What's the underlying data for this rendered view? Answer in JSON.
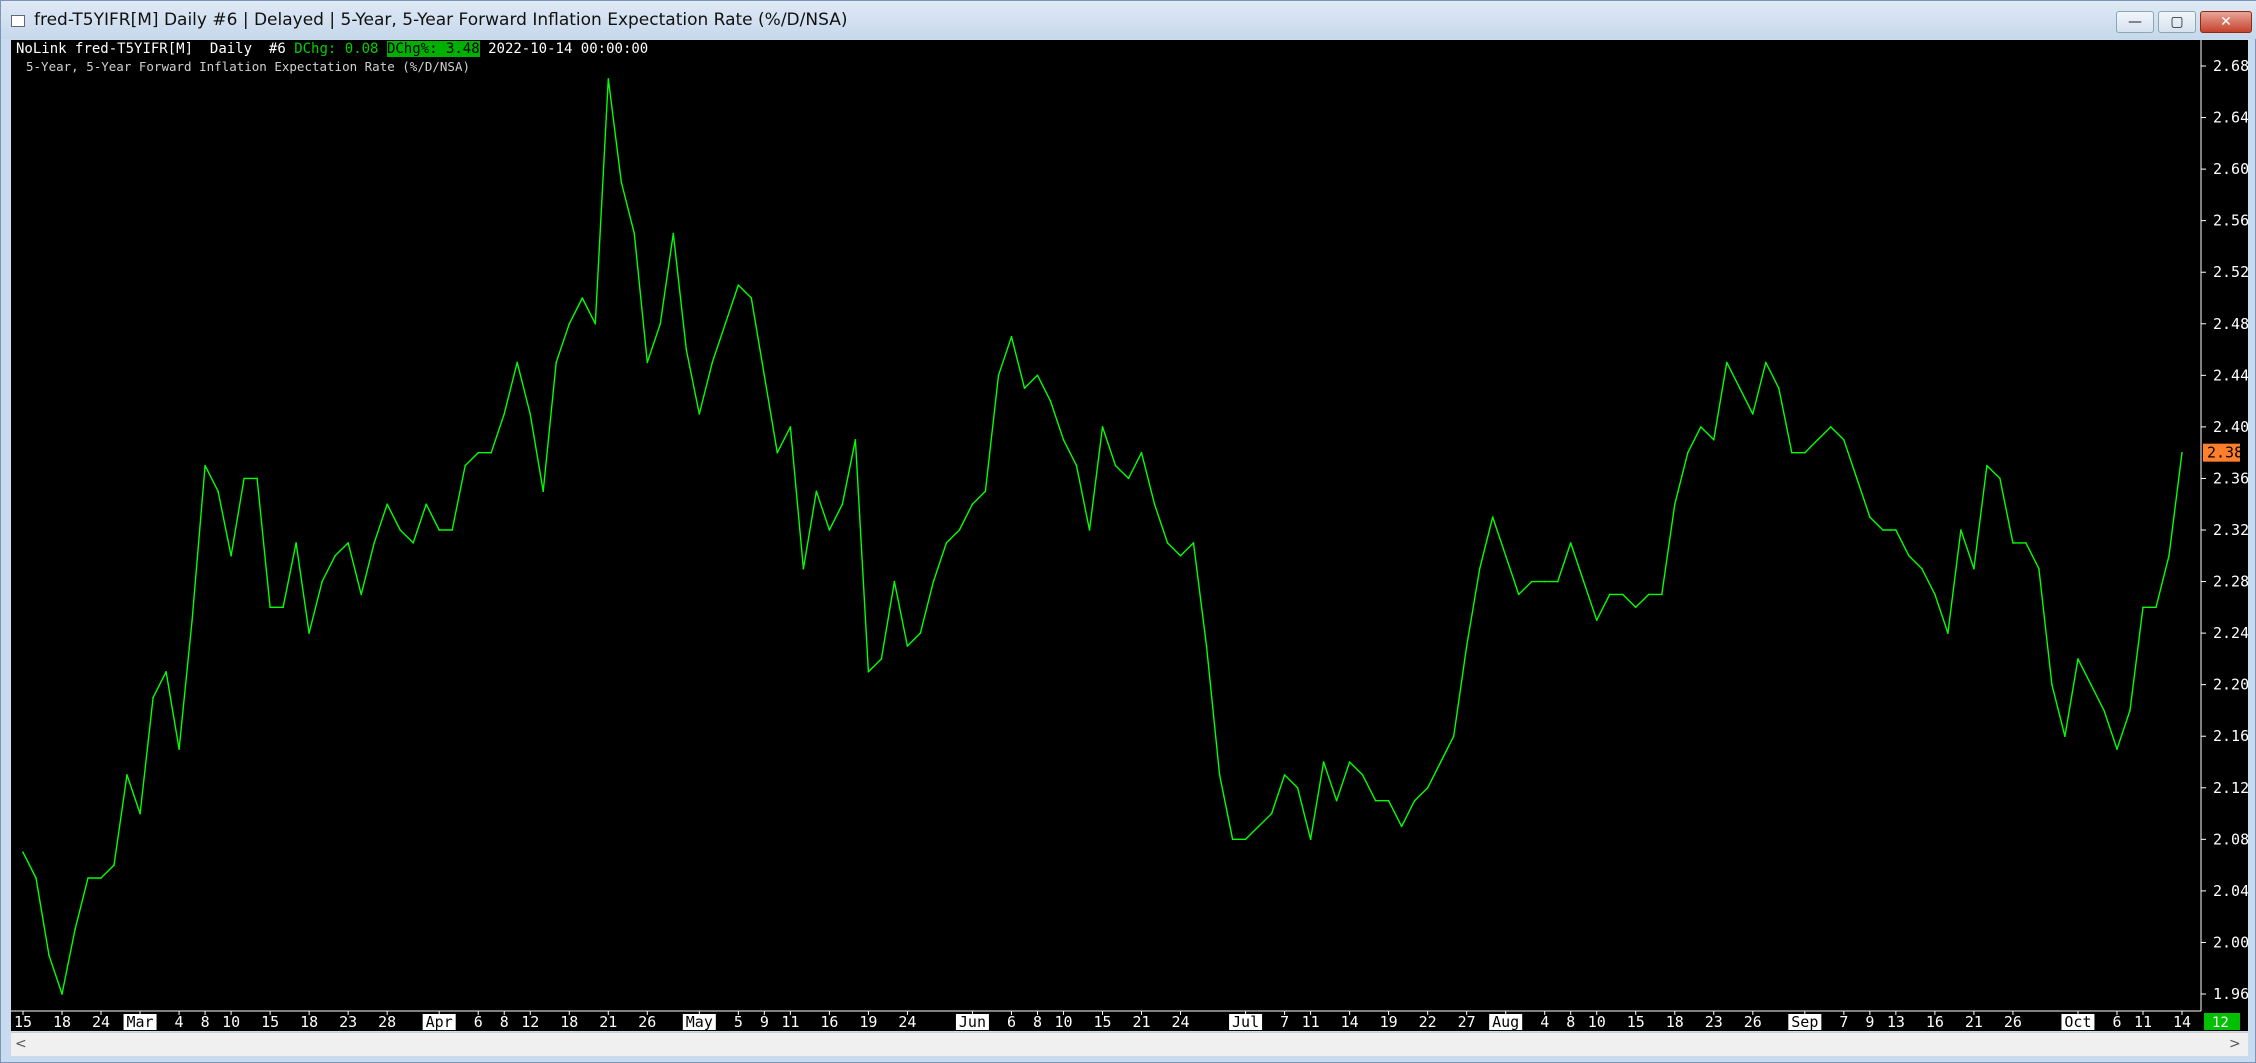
{
  "window": {
    "title": "fred-T5YIFR[M]  Daily  #6 | Delayed | 5-Year, 5-Year Forward Inflation Expectation Rate (%/D/NSA)",
    "minimize_glyph": "—",
    "maximize_glyph": "▢",
    "close_glyph": "✕"
  },
  "header": {
    "link": "NoLink",
    "symbol": "fred-T5YIFR[M]",
    "period": "Daily",
    "id": "#6",
    "dchg": "DChg: 0.08",
    "dchg_pct": "DChg%: 3.48",
    "datetime": "2022-10-14 00:00:00",
    "series_name": "5-Year, 5-Year Forward Inflation Expectation Rate (%/D/NSA)"
  },
  "colors": {
    "background": "#000000",
    "line": "#00ff00",
    "axis_text": "#ffffff",
    "last_price_tag": "#ff7f2a",
    "corner_tag": "#00c000"
  },
  "scrollbar": {
    "left_arrow": "<",
    "right_arrow": ">"
  },
  "chart_data": {
    "type": "line",
    "ylim": [
      1.94,
      2.7
    ],
    "yticks": [
      "2.68",
      "2.64",
      "2.60",
      "2.56",
      "2.52",
      "2.48",
      "2.44",
      "2.40",
      "2.36",
      "2.32",
      "2.28",
      "2.24",
      "2.20",
      "2.16",
      "2.12",
      "2.08",
      "2.04",
      "2.00",
      "1.96"
    ],
    "last_value_label": "2.38",
    "corner_label": "12",
    "xticks": [
      {
        "label": "15",
        "i": 0,
        "month": false
      },
      {
        "label": "18",
        "i": 3,
        "month": false
      },
      {
        "label": "24",
        "i": 6,
        "month": false
      },
      {
        "label": "Mar",
        "i": 9,
        "month": true
      },
      {
        "label": "4",
        "i": 12,
        "month": false
      },
      {
        "label": "8",
        "i": 14,
        "month": false
      },
      {
        "label": "10",
        "i": 16,
        "month": false
      },
      {
        "label": "15",
        "i": 19,
        "month": false
      },
      {
        "label": "18",
        "i": 22,
        "month": false
      },
      {
        "label": "23",
        "i": 25,
        "month": false
      },
      {
        "label": "28",
        "i": 28,
        "month": false
      },
      {
        "label": "Apr",
        "i": 32,
        "month": true
      },
      {
        "label": "6",
        "i": 35,
        "month": false
      },
      {
        "label": "8",
        "i": 37,
        "month": false
      },
      {
        "label": "12",
        "i": 39,
        "month": false
      },
      {
        "label": "18",
        "i": 42,
        "month": false
      },
      {
        "label": "21",
        "i": 45,
        "month": false
      },
      {
        "label": "26",
        "i": 48,
        "month": false
      },
      {
        "label": "May",
        "i": 52,
        "month": true
      },
      {
        "label": "5",
        "i": 55,
        "month": false
      },
      {
        "label": "9",
        "i": 57,
        "month": false
      },
      {
        "label": "11",
        "i": 59,
        "month": false
      },
      {
        "label": "16",
        "i": 62,
        "month": false
      },
      {
        "label": "19",
        "i": 65,
        "month": false
      },
      {
        "label": "24",
        "i": 68,
        "month": false
      },
      {
        "label": "Jun",
        "i": 73,
        "month": true
      },
      {
        "label": "6",
        "i": 76,
        "month": false
      },
      {
        "label": "8",
        "i": 78,
        "month": false
      },
      {
        "label": "10",
        "i": 80,
        "month": false
      },
      {
        "label": "15",
        "i": 83,
        "month": false
      },
      {
        "label": "21",
        "i": 86,
        "month": false
      },
      {
        "label": "24",
        "i": 89,
        "month": false
      },
      {
        "label": "Jul",
        "i": 94,
        "month": true
      },
      {
        "label": "7",
        "i": 97,
        "month": false
      },
      {
        "label": "11",
        "i": 99,
        "month": false
      },
      {
        "label": "14",
        "i": 102,
        "month": false
      },
      {
        "label": "19",
        "i": 105,
        "month": false
      },
      {
        "label": "22",
        "i": 108,
        "month": false
      },
      {
        "label": "27",
        "i": 111,
        "month": false
      },
      {
        "label": "Aug",
        "i": 114,
        "month": true
      },
      {
        "label": "4",
        "i": 117,
        "month": false
      },
      {
        "label": "8",
        "i": 119,
        "month": false
      },
      {
        "label": "10",
        "i": 121,
        "month": false
      },
      {
        "label": "15",
        "i": 124,
        "month": false
      },
      {
        "label": "18",
        "i": 127,
        "month": false
      },
      {
        "label": "23",
        "i": 130,
        "month": false
      },
      {
        "label": "26",
        "i": 133,
        "month": false
      },
      {
        "label": "Sep",
        "i": 137,
        "month": true
      },
      {
        "label": "7",
        "i": 140,
        "month": false
      },
      {
        "label": "9",
        "i": 142,
        "month": false
      },
      {
        "label": "13",
        "i": 144,
        "month": false
      },
      {
        "label": "16",
        "i": 147,
        "month": false
      },
      {
        "label": "21",
        "i": 150,
        "month": false
      },
      {
        "label": "26",
        "i": 153,
        "month": false
      },
      {
        "label": "Oct",
        "i": 158,
        "month": true
      },
      {
        "label": "6",
        "i": 161,
        "month": false
      },
      {
        "label": "11",
        "i": 163,
        "month": false
      },
      {
        "label": "14",
        "i": 166,
        "month": false
      }
    ],
    "series": [
      {
        "values": [
          2.07,
          2.05,
          1.99,
          1.96,
          2.01,
          2.05,
          2.05,
          2.06,
          2.13,
          2.1,
          2.19,
          2.21,
          2.15,
          2.25,
          2.37,
          2.35,
          2.3,
          2.36,
          2.36,
          2.26,
          2.26,
          2.31,
          2.24,
          2.28,
          2.3,
          2.31,
          2.27,
          2.31,
          2.34,
          2.32,
          2.31,
          2.34,
          2.32,
          2.32,
          2.37,
          2.38,
          2.38,
          2.41,
          2.45,
          2.41,
          2.35,
          2.45,
          2.48,
          2.5,
          2.48,
          2.67,
          2.59,
          2.55,
          2.45,
          2.48,
          2.55,
          2.46,
          2.41,
          2.45,
          2.48,
          2.51,
          2.5,
          2.44,
          2.38,
          2.4,
          2.29,
          2.35,
          2.32,
          2.34,
          2.39,
          2.21,
          2.22,
          2.28,
          2.23,
          2.24,
          2.28,
          2.31,
          2.32,
          2.34,
          2.35,
          2.44,
          2.47,
          2.43,
          2.44,
          2.42,
          2.39,
          2.37,
          2.32,
          2.4,
          2.37,
          2.36,
          2.38,
          2.34,
          2.31,
          2.3,
          2.31,
          2.23,
          2.13,
          2.08,
          2.08,
          2.09,
          2.1,
          2.13,
          2.12,
          2.08,
          2.14,
          2.11,
          2.14,
          2.13,
          2.11,
          2.11,
          2.09,
          2.11,
          2.12,
          2.14,
          2.16,
          2.23,
          2.29,
          2.33,
          2.3,
          2.27,
          2.28,
          2.28,
          2.28,
          2.31,
          2.28,
          2.25,
          2.27,
          2.27,
          2.26,
          2.27,
          2.27,
          2.34,
          2.38,
          2.4,
          2.39,
          2.45,
          2.43,
          2.41,
          2.45,
          2.43,
          2.38,
          2.38,
          2.39,
          2.4,
          2.39,
          2.36,
          2.33,
          2.32,
          2.32,
          2.3,
          2.29,
          2.27,
          2.24,
          2.32,
          2.29,
          2.37,
          2.36,
          2.31,
          2.31,
          2.29,
          2.2,
          2.16,
          2.22,
          2.2,
          2.18,
          2.15,
          2.18,
          2.26,
          2.26,
          2.3,
          2.38
        ]
      }
    ]
  }
}
